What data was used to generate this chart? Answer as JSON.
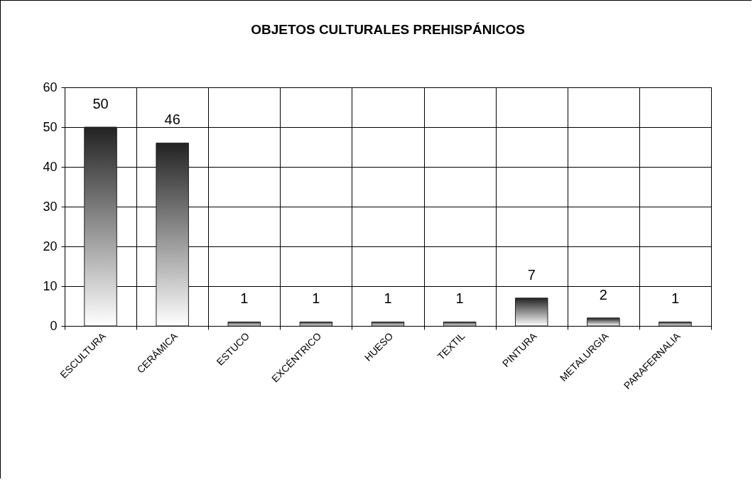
{
  "chart_data": {
    "type": "bar",
    "title": "OBJETOS CULTURALES PREHISPÁNICOS",
    "categories": [
      "ESCULTURA",
      "CERÁMICA",
      "ESTUCO",
      "EXCÉNTRICO",
      "HUESO",
      "TEXTIL",
      "PINTURA",
      "METALURGIA",
      "PARAFERNALIA"
    ],
    "values": [
      50,
      46,
      1,
      1,
      1,
      1,
      7,
      2,
      1
    ],
    "color": "#222222",
    "ylim": [
      0,
      60
    ],
    "yticks": [
      0,
      10,
      20,
      30,
      40,
      50,
      60
    ],
    "grid": true,
    "data_labels": true
  }
}
